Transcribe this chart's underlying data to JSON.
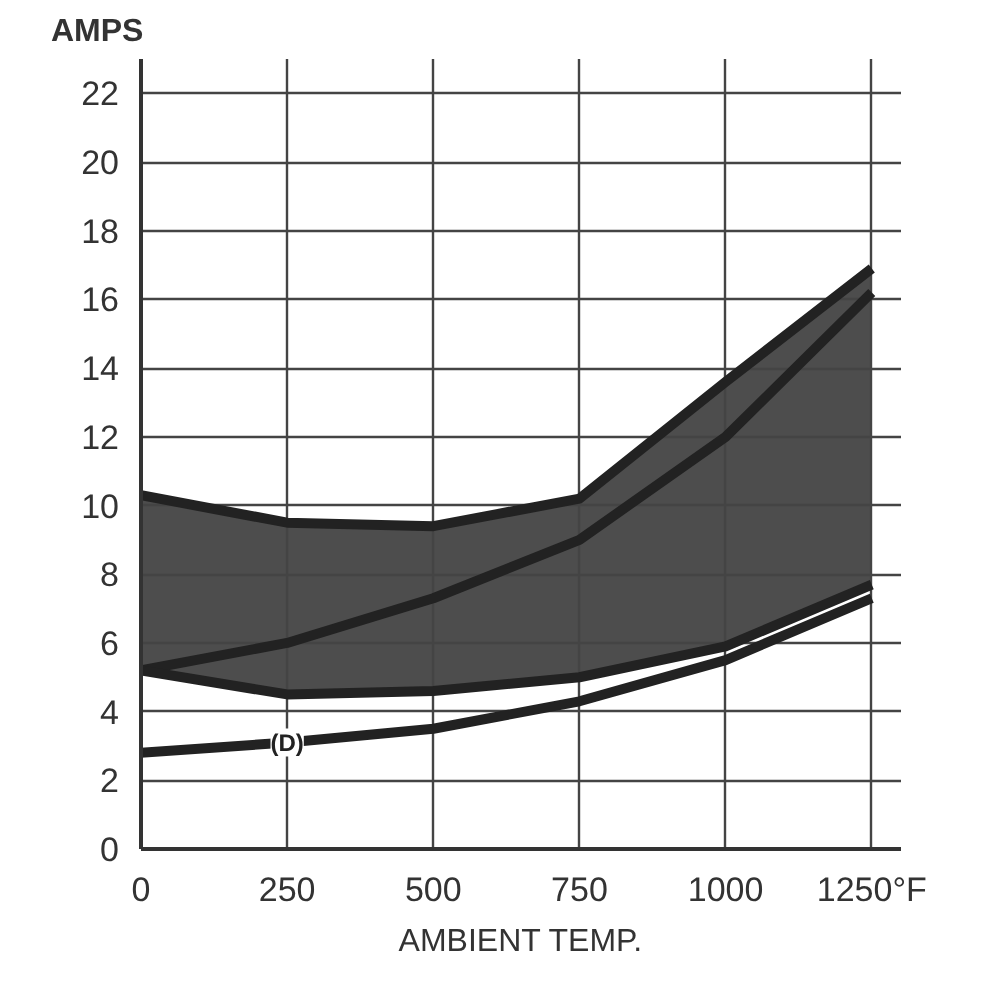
{
  "chart_data": {
    "type": "line",
    "ylabel": "AMPS",
    "xlabel": "AMBIENT TEMP.",
    "x": [
      0,
      250,
      500,
      750,
      1000,
      1250
    ],
    "series": [
      {
        "color": "#222222",
        "values": [
          10.3,
          9.5,
          9.4,
          10.2,
          13.6,
          16.9
        ]
      },
      {
        "color": "#222222",
        "values": [
          5.2,
          6.0,
          7.3,
          9.0,
          12.0,
          16.2
        ],
        "lower": [
          5.2,
          4.5,
          4.6,
          5.0,
          5.9,
          7.7
        ],
        "upper": [
          10.3,
          9.5,
          9.4,
          10.2,
          13.6,
          16.9
        ]
      },
      {
        "color": "#222222",
        "values": [
          5.2,
          4.5,
          4.6,
          5.0,
          5.9,
          7.7
        ]
      },
      {
        "name": "(D)",
        "color": "#222222",
        "values": [
          2.8,
          3.1,
          3.5,
          4.3,
          5.5,
          7.3
        ]
      }
    ],
    "xlim": [
      0,
      1300
    ],
    "ylim": [
      0,
      23
    ],
    "xticks": [
      0,
      250,
      500,
      750,
      1000,
      {
        "value": 1250,
        "label": "1250°F"
      }
    ],
    "yticks": [
      0,
      2,
      4,
      6,
      8,
      10,
      12,
      14,
      16,
      18,
      20,
      22
    ],
    "grid": true,
    "marker": "none",
    "line_style": "solid"
  }
}
